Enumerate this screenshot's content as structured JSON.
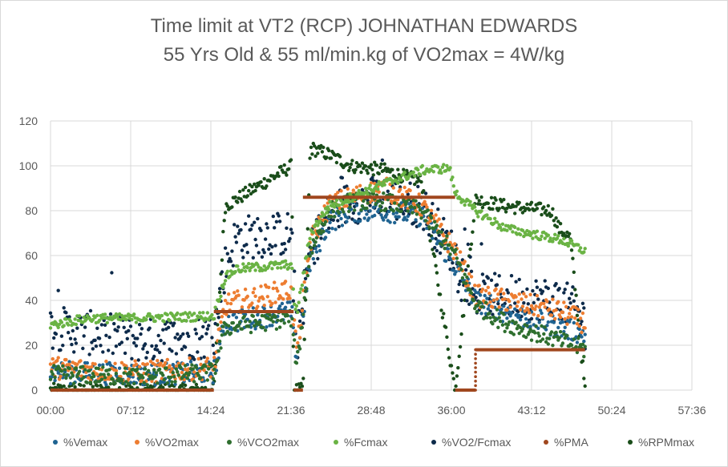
{
  "chart_data": {
    "type": "scatter",
    "title_lines": [
      "Time limit at VT2 (RCP) JOHNATHAN EDWARDS",
      "55 Yrs Old & 55 ml/min.kg of VO2max = 4W/kg"
    ],
    "xlabel": "",
    "ylabel": "",
    "x_axis": {
      "unit": "mm:ss",
      "min": 0,
      "max": 3456,
      "tick_step": 432
    },
    "x_tick_labels": [
      "00:00",
      "07:12",
      "14:24",
      "21:36",
      "28:48",
      "36:00",
      "43:12",
      "50:24",
      "57:36"
    ],
    "ylim": [
      0,
      120
    ],
    "y_tick_labels": [
      "0",
      "20",
      "40",
      "60",
      "80",
      "100",
      "120"
    ],
    "grid": {
      "horizontal": true,
      "vertical": true
    },
    "legend_position": "bottom",
    "series": [
      {
        "name": "%Vemax",
        "color": "#1f6391",
        "marker": "dot",
        "profile": [
          [
            0,
            8
          ],
          [
            500,
            7
          ],
          [
            880,
            8
          ],
          [
            940,
            30
          ],
          [
            1300,
            35
          ],
          [
            1310,
            22
          ],
          [
            1330,
            16
          ],
          [
            1400,
            58
          ],
          [
            1500,
            75
          ],
          [
            1620,
            80
          ],
          [
            1800,
            80
          ],
          [
            2000,
            78
          ],
          [
            2180,
            55
          ],
          [
            2290,
            40
          ],
          [
            2450,
            35
          ],
          [
            2750,
            28
          ],
          [
            2880,
            25
          ]
        ],
        "spread": 5
      },
      {
        "name": "%VO2max",
        "color": "#ed7d31",
        "marker": "dot",
        "profile": [
          [
            0,
            10
          ],
          [
            500,
            8
          ],
          [
            880,
            10
          ],
          [
            940,
            38
          ],
          [
            1300,
            45
          ],
          [
            1310,
            30
          ],
          [
            1330,
            18
          ],
          [
            1400,
            66
          ],
          [
            1500,
            82
          ],
          [
            1620,
            86
          ],
          [
            1800,
            90
          ],
          [
            2000,
            82
          ],
          [
            2180,
            62
          ],
          [
            2290,
            42
          ],
          [
            2450,
            40
          ],
          [
            2750,
            35
          ],
          [
            2880,
            30
          ]
        ],
        "spread": 5
      },
      {
        "name": "%VCO2max",
        "color": "#2e6e2e",
        "marker": "dot",
        "profile": [
          [
            0,
            7
          ],
          [
            500,
            6
          ],
          [
            880,
            8
          ],
          [
            940,
            28
          ],
          [
            1300,
            32
          ],
          [
            1310,
            20
          ],
          [
            1330,
            12
          ],
          [
            1400,
            62
          ],
          [
            1500,
            80
          ],
          [
            1620,
            84
          ],
          [
            1800,
            84
          ],
          [
            2000,
            80
          ],
          [
            2180,
            60
          ],
          [
            2290,
            38
          ],
          [
            2450,
            30
          ],
          [
            2750,
            22
          ],
          [
            2880,
            18
          ]
        ],
        "spread": 4
      },
      {
        "name": "%Fcmax",
        "color": "#6ab344",
        "marker": "dot",
        "profile": [
          [
            0,
            29
          ],
          [
            200,
            32
          ],
          [
            400,
            32
          ],
          [
            880,
            33
          ],
          [
            940,
            50
          ],
          [
            1000,
            54
          ],
          [
            1300,
            56
          ],
          [
            1310,
            40
          ],
          [
            1330,
            35
          ],
          [
            1400,
            70
          ],
          [
            1500,
            82
          ],
          [
            1620,
            86
          ],
          [
            1800,
            92
          ],
          [
            1900,
            95
          ],
          [
            2000,
            98
          ],
          [
            2150,
            99
          ],
          [
            2180,
            88
          ],
          [
            2290,
            80
          ],
          [
            2450,
            72
          ],
          [
            2750,
            67
          ],
          [
            2880,
            62
          ]
        ],
        "spread": 2
      },
      {
        "name": "%VO2/Fcmax",
        "color": "#0d2a4a",
        "marker": "dot",
        "profile": [
          [
            0,
            28
          ],
          [
            500,
            22
          ],
          [
            880,
            24
          ],
          [
            940,
            55
          ],
          [
            1000,
            68
          ],
          [
            1300,
            70
          ],
          [
            1310,
            40
          ],
          [
            1330,
            22
          ],
          [
            1400,
            62
          ],
          [
            1500,
            78
          ],
          [
            1620,
            84
          ],
          [
            1800,
            86
          ],
          [
            2000,
            82
          ],
          [
            2180,
            60
          ],
          [
            2290,
            42
          ],
          [
            2450,
            42
          ],
          [
            2750,
            40
          ],
          [
            2880,
            32
          ]
        ],
        "spread": 10
      },
      {
        "name": "%PMA",
        "color": "#a0471e",
        "marker": "line",
        "segments": [
          [
            [
              0,
              0
            ],
            [
              880,
              0
            ]
          ],
          [
            [
              880,
              35
            ],
            [
              1310,
              35
            ]
          ],
          [
            [
              1310,
              0
            ],
            [
              1360,
              0
            ]
          ],
          [
            [
              1360,
              86
            ],
            [
              2180,
              86
            ]
          ],
          [
            [
              2180,
              0
            ],
            [
              2290,
              0
            ]
          ],
          [
            [
              2290,
              18
            ],
            [
              2880,
              18
            ]
          ]
        ]
      },
      {
        "name": "%RPMmax",
        "color": "#1a4d1a",
        "marker": "dot",
        "profile": [
          [
            0,
            0
          ],
          [
            880,
            0
          ],
          [
            940,
            82
          ],
          [
            1100,
            90
          ],
          [
            1300,
            100
          ],
          [
            1310,
            0
          ],
          [
            1360,
            0
          ],
          [
            1400,
            108
          ],
          [
            1500,
            105
          ],
          [
            1620,
            100
          ],
          [
            1800,
            98
          ],
          [
            2000,
            93
          ],
          [
            2180,
            0
          ],
          [
            2290,
            85
          ],
          [
            2450,
            82
          ],
          [
            2700,
            80
          ],
          [
            2740,
            72
          ],
          [
            2800,
            68
          ],
          [
            2880,
            0
          ]
        ],
        "spread": 3
      }
    ]
  }
}
